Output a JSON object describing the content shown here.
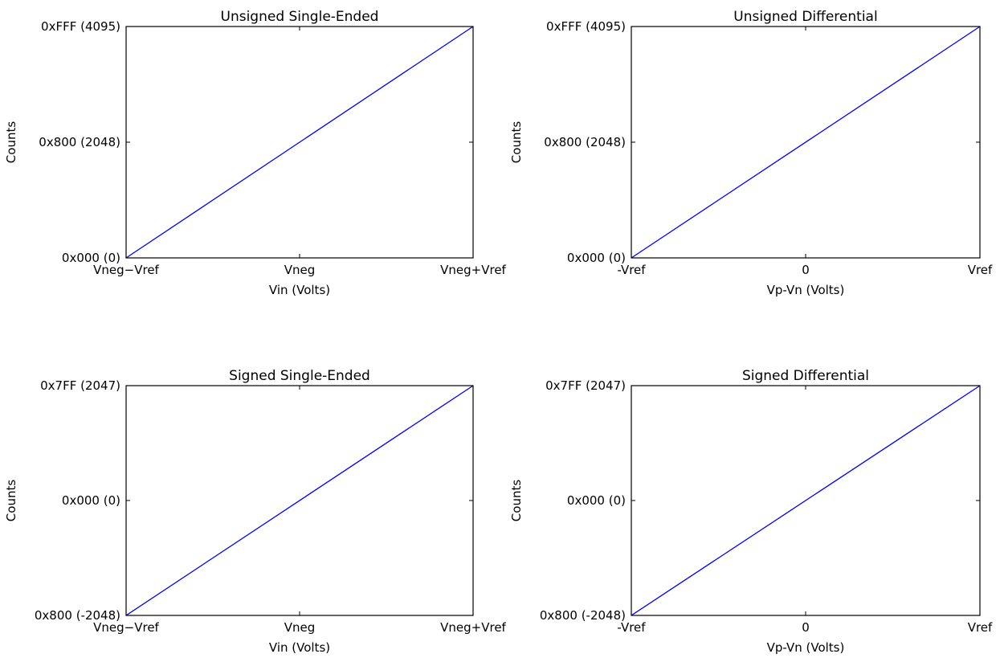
{
  "line_color": "#0000ff",
  "chart_data": [
    {
      "type": "line",
      "title": "Unsigned Single-Ended",
      "xlabel": "Vin (Volts)",
      "ylabel": "Counts",
      "x": [
        -1,
        1
      ],
      "y": [
        0,
        4095
      ],
      "xlim": [
        -1,
        1
      ],
      "ylim": [
        0,
        4095
      ],
      "xticks": [
        {
          "value": -1,
          "label": "Vneg−Vref"
        },
        {
          "value": 0,
          "label": "Vneg"
        },
        {
          "value": 1,
          "label": "Vneg+Vref"
        }
      ],
      "yticks": [
        {
          "value": 0,
          "label": "0x000 (0)"
        },
        {
          "value": 2048,
          "label": "0x800 (2048)"
        },
        {
          "value": 4095,
          "label": "0xFFF (4095)"
        }
      ],
      "grid": false
    },
    {
      "type": "line",
      "title": "Unsigned Differential",
      "xlabel": "Vp-Vn (Volts)",
      "ylabel": "Counts",
      "x": [
        -1,
        1
      ],
      "y": [
        0,
        4095
      ],
      "xlim": [
        -1,
        1
      ],
      "ylim": [
        0,
        4095
      ],
      "xticks": [
        {
          "value": -1,
          "label": "-Vref"
        },
        {
          "value": 0,
          "label": "0"
        },
        {
          "value": 1,
          "label": "Vref"
        }
      ],
      "yticks": [
        {
          "value": 0,
          "label": "0x000 (0)"
        },
        {
          "value": 2048,
          "label": "0x800 (2048)"
        },
        {
          "value": 4095,
          "label": "0xFFF (4095)"
        }
      ],
      "grid": false
    },
    {
      "type": "line",
      "title": "Signed Single-Ended",
      "xlabel": "Vin (Volts)",
      "ylabel": "Counts",
      "x": [
        -1,
        1
      ],
      "y": [
        -2048,
        2047
      ],
      "xlim": [
        -1,
        1
      ],
      "ylim": [
        -2048,
        2047
      ],
      "xticks": [
        {
          "value": -1,
          "label": "Vneg−Vref"
        },
        {
          "value": 0,
          "label": "Vneg"
        },
        {
          "value": 1,
          "label": "Vneg+Vref"
        }
      ],
      "yticks": [
        {
          "value": -2048,
          "label": "0x800 (-2048)"
        },
        {
          "value": 0,
          "label": "0x000 (0)"
        },
        {
          "value": 2047,
          "label": "0x7FF (2047)"
        }
      ],
      "grid": false
    },
    {
      "type": "line",
      "title": "Signed Differential",
      "xlabel": "Vp-Vn (Volts)",
      "ylabel": "Counts",
      "x": [
        -1,
        1
      ],
      "y": [
        -2048,
        2047
      ],
      "xlim": [
        -1,
        1
      ],
      "ylim": [
        -2048,
        2047
      ],
      "xticks": [
        {
          "value": -1,
          "label": "-Vref"
        },
        {
          "value": 0,
          "label": "0"
        },
        {
          "value": 1,
          "label": "Vref"
        }
      ],
      "yticks": [
        {
          "value": -2048,
          "label": "0x800 (-2048)"
        },
        {
          "value": 0,
          "label": "0x000 (0)"
        },
        {
          "value": 2047,
          "label": "0x7FF (2047)"
        }
      ],
      "grid": false
    }
  ]
}
